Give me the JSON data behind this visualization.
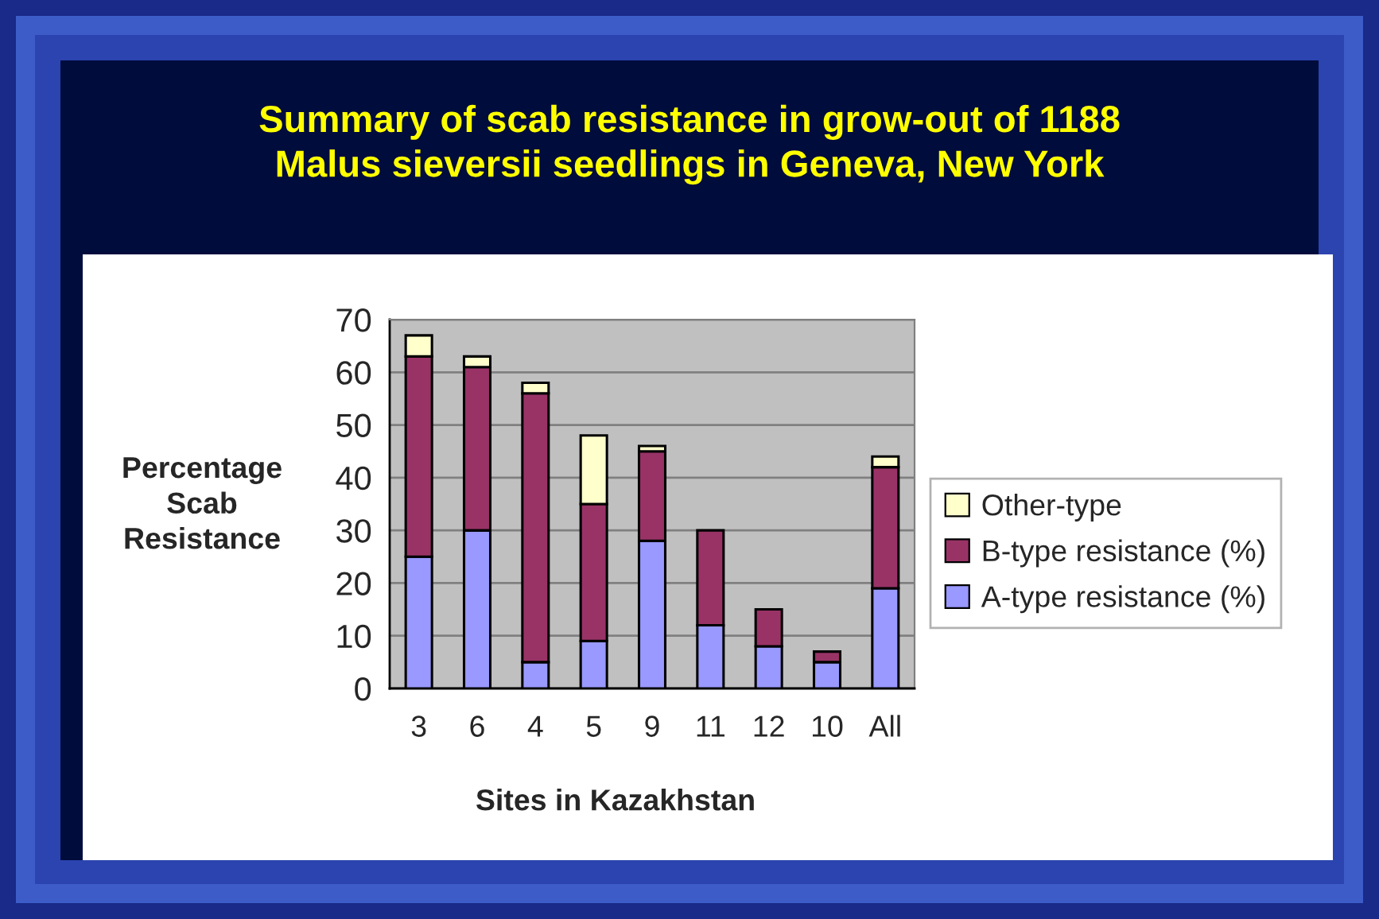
{
  "chart_data": {
    "type": "bar",
    "title": "Summary of scab resistance in grow-out of 1188\nMalus sieversii seedlings in Geneva, New York",
    "xlabel": "Sites in Kazakhstan",
    "ylabel": "Percentage\nScab\nResistance",
    "categories": [
      "3",
      "6",
      "4",
      "5",
      "9",
      "11",
      "12",
      "10",
      "All"
    ],
    "stacked": true,
    "series": [
      {
        "name": "A-type resistance (%)",
        "color": "#9999ff",
        "values": [
          25,
          30,
          5,
          9,
          28,
          12,
          8,
          5,
          19
        ]
      },
      {
        "name": "B-type resistance (%)",
        "color": "#993366",
        "values": [
          38,
          31,
          51,
          26,
          17,
          18,
          7,
          2,
          23
        ]
      },
      {
        "name": "Other-type",
        "color": "#ffffcc",
        "values": [
          4,
          2,
          2,
          13,
          1,
          null,
          null,
          null,
          2
        ]
      }
    ],
    "ylim": [
      0,
      70
    ],
    "yticks": [
      0,
      10,
      20,
      30,
      40,
      50,
      60,
      70
    ],
    "grid": "y",
    "legend": "right"
  }
}
